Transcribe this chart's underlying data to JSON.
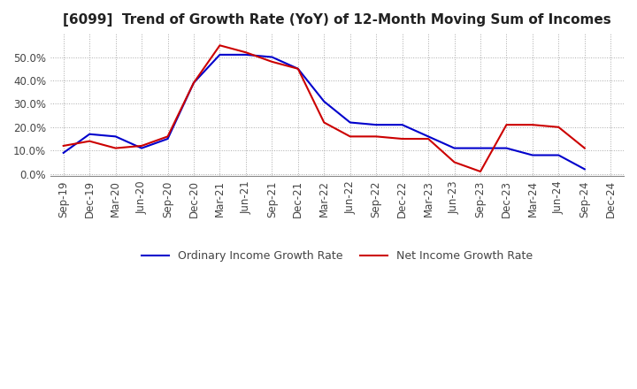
{
  "title": "[6099]  Trend of Growth Rate (YoY) of 12-Month Moving Sum of Incomes",
  "x_labels": [
    "Sep-19",
    "Dec-19",
    "Mar-20",
    "Jun-20",
    "Sep-20",
    "Dec-20",
    "Mar-21",
    "Jun-21",
    "Sep-21",
    "Dec-21",
    "Mar-22",
    "Jun-22",
    "Sep-22",
    "Dec-22",
    "Mar-23",
    "Jun-23",
    "Sep-23",
    "Dec-23",
    "Mar-24",
    "Jun-24",
    "Sep-24",
    "Dec-24"
  ],
  "ordinary_income": [
    0.09,
    0.17,
    0.16,
    0.11,
    0.15,
    0.39,
    0.51,
    0.51,
    0.5,
    0.45,
    0.31,
    0.22,
    0.21,
    0.21,
    0.16,
    0.11,
    0.11,
    0.11,
    0.08,
    0.08,
    0.02,
    null
  ],
  "net_income": [
    0.12,
    0.14,
    0.11,
    0.12,
    0.16,
    0.39,
    0.55,
    0.52,
    0.48,
    0.45,
    0.22,
    0.16,
    0.16,
    0.15,
    0.15,
    0.05,
    0.01,
    0.21,
    0.21,
    0.2,
    0.11,
    null
  ],
  "ylim": [
    -0.01,
    0.6
  ],
  "yticks": [
    0.0,
    0.1,
    0.2,
    0.3,
    0.4,
    0.5
  ],
  "ordinary_color": "#0000cc",
  "net_color": "#cc0000",
  "legend_ordinary": "Ordinary Income Growth Rate",
  "legend_net": "Net Income Growth Rate",
  "background_color": "#ffffff",
  "grid_color": "#aaaaaa",
  "title_fontsize": 11,
  "tick_fontsize": 8.5
}
